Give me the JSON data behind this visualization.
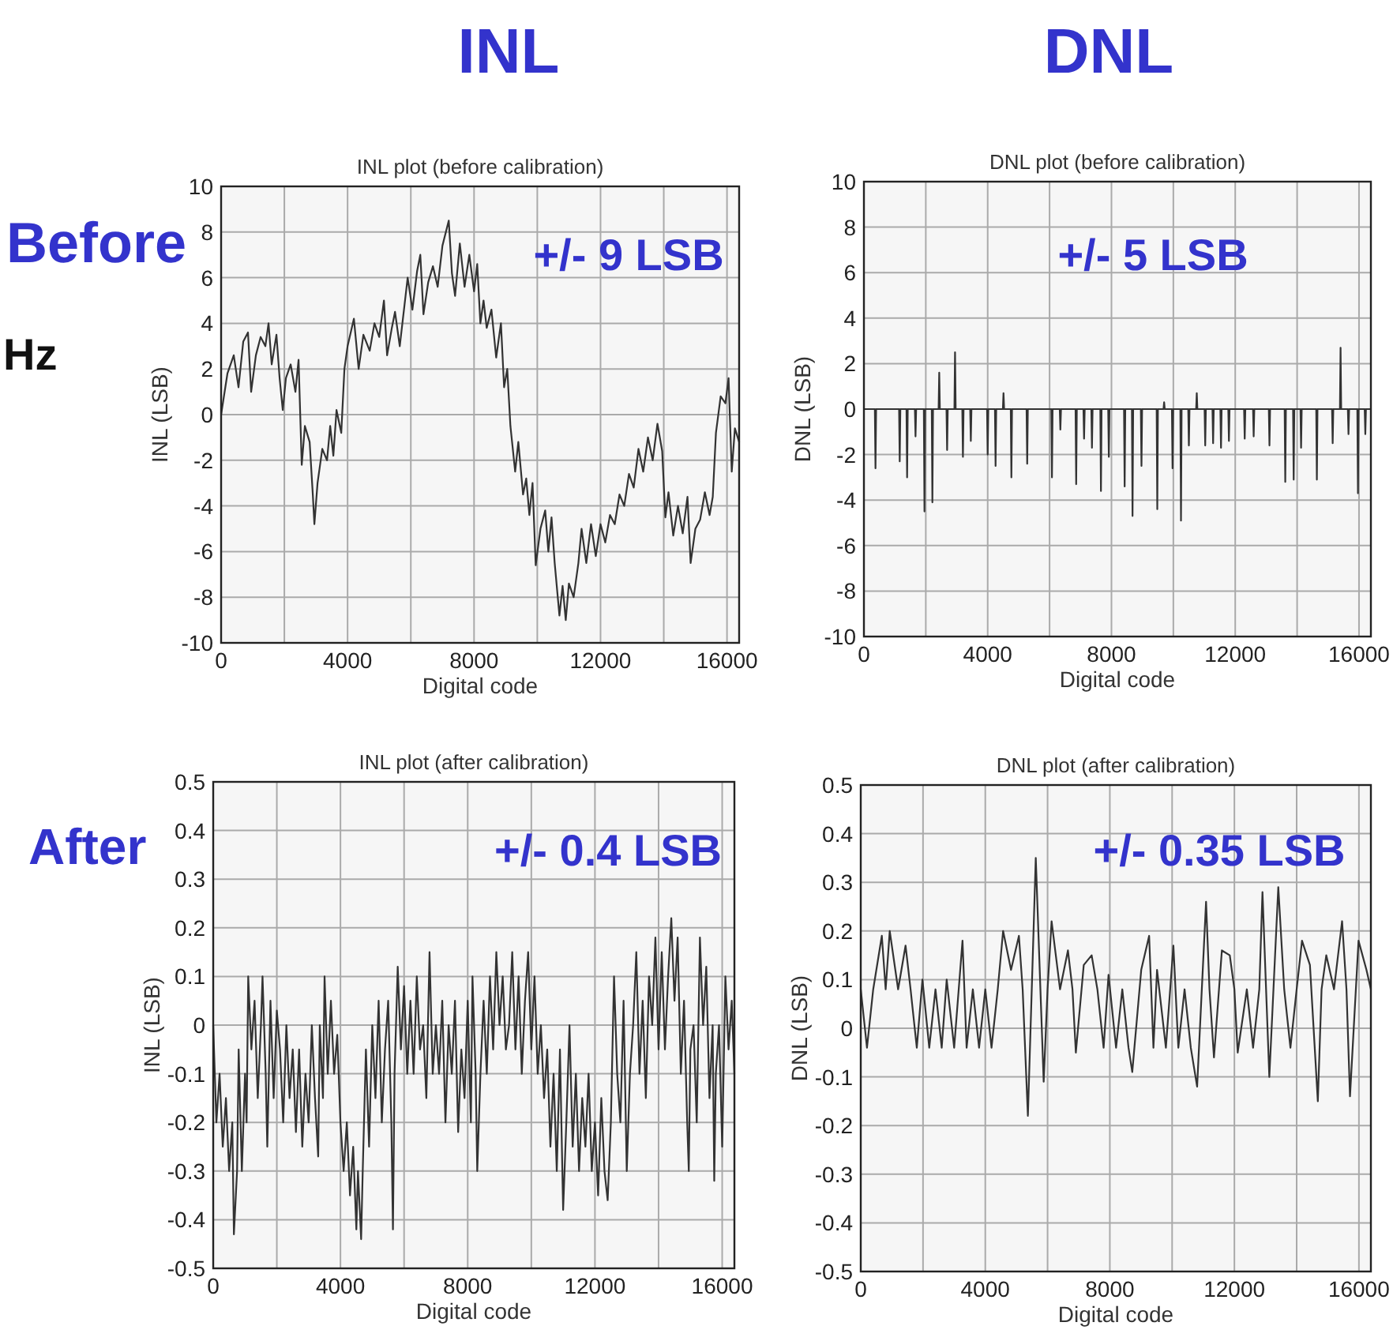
{
  "chart_data": [
    {
      "type": "line",
      "title": "INL plot (before calibration)",
      "xlabel": "Digital code",
      "ylabel": "INL (LSB)",
      "xlim": [
        0,
        16384
      ],
      "ylim": [
        -10,
        10
      ],
      "xticks": [
        0,
        {
          "value": 2000,
          "label": null
        },
        4000,
        {
          "value": 6000,
          "label": null
        },
        8000,
        {
          "value": 10000,
          "label": null
        },
        12000,
        {
          "value": 14000,
          "label": null
        },
        16000
      ],
      "yticks": [
        -10,
        -8,
        -6,
        -4,
        -2,
        0,
        2,
        4,
        6,
        8,
        10
      ],
      "grid": true,
      "annotations": [
        "INL",
        "Before",
        "Hz",
        "+/- 9 LSB"
      ],
      "series": [
        {
          "color": "#333333",
          "x": [
            0,
            200,
            400,
            550,
            700,
            850,
            950,
            1100,
            1250,
            1400,
            1500,
            1600,
            1750,
            1850,
            1950,
            2050,
            2200,
            2350,
            2450,
            2550,
            2650,
            2800,
            2900,
            2950,
            3050,
            3200,
            3350,
            3450,
            3550,
            3650,
            3800,
            3900,
            4000,
            4200,
            4350,
            4500,
            4700,
            4850,
            5000,
            5150,
            5250,
            5400,
            5500,
            5650,
            5800,
            5900,
            6050,
            6200,
            6300,
            6400,
            6550,
            6700,
            6850,
            7000,
            7200,
            7300,
            7400,
            7550,
            7700,
            7850,
            8000,
            8100,
            8200,
            8300,
            8400,
            8550,
            8700,
            8850,
            8950,
            9050,
            9150,
            9300,
            9400,
            9550,
            9650,
            9750,
            9850,
            9950,
            10100,
            10250,
            10350,
            10450,
            10550,
            10700,
            10800,
            10900,
            11000,
            11150,
            11300,
            11400,
            11550,
            11700,
            11850,
            12000,
            12150,
            12300,
            12450,
            12600,
            12750,
            12900,
            13050,
            13200,
            13350,
            13500,
            13650,
            13800,
            13950,
            14050,
            14150,
            14300,
            14450,
            14600,
            14750,
            14850,
            15000,
            15150,
            15300,
            15450,
            15550,
            15650,
            15800,
            15950,
            16050,
            16150,
            16250,
            16384
          ],
          "values": [
            0,
            1.8,
            2.6,
            1.2,
            3.2,
            3.6,
            1.0,
            2.6,
            3.4,
            3.0,
            4.0,
            2.2,
            3.5,
            1.6,
            0.2,
            1.6,
            2.2,
            1.0,
            2.4,
            -2.2,
            -0.5,
            -1.2,
            -3.5,
            -4.8,
            -3.0,
            -1.5,
            -2.0,
            -0.5,
            -1.8,
            0.2,
            -0.8,
            2.0,
            3.0,
            4.2,
            2.0,
            3.5,
            2.8,
            4.0,
            3.4,
            5.0,
            2.6,
            3.8,
            4.5,
            3.0,
            4.8,
            6.0,
            4.6,
            6.3,
            7.0,
            4.4,
            5.8,
            6.5,
            5.6,
            7.4,
            8.5,
            6.2,
            5.2,
            7.5,
            5.6,
            7.0,
            5.4,
            6.6,
            4.0,
            5.0,
            3.8,
            4.6,
            2.5,
            4.0,
            1.2,
            2.0,
            -0.5,
            -2.5,
            -1.2,
            -3.5,
            -2.8,
            -4.4,
            -3.0,
            -6.6,
            -5.0,
            -4.2,
            -6.0,
            -4.5,
            -6.5,
            -8.8,
            -7.5,
            -9.0,
            -7.4,
            -8.0,
            -6.5,
            -5.0,
            -6.5,
            -4.8,
            -6.2,
            -4.8,
            -5.6,
            -4.4,
            -4.8,
            -3.5,
            -4.0,
            -2.6,
            -3.2,
            -1.5,
            -2.5,
            -1.0,
            -2.0,
            -0.4,
            -1.6,
            -4.5,
            -3.4,
            -5.3,
            -4.0,
            -5.2,
            -3.6,
            -6.5,
            -5.0,
            -4.6,
            -3.4,
            -4.4,
            -3.6,
            -0.8,
            0.8,
            0.5,
            1.6,
            -2.5,
            -0.6,
            -1.2
          ]
        }
      ]
    },
    {
      "type": "line",
      "title": "DNL plot (before calibration)",
      "xlabel": "Digital code",
      "ylabel": "DNL (LSB)",
      "xlim": [
        0,
        16384
      ],
      "ylim": [
        -10,
        10
      ],
      "xticks": [
        0,
        {
          "value": 2000,
          "label": null
        },
        4000,
        {
          "value": 6000,
          "label": null
        },
        8000,
        {
          "value": 10000,
          "label": null
        },
        12000,
        {
          "value": 14000,
          "label": null
        },
        16000
      ],
      "yticks": [
        -10,
        -8,
        -6,
        -4,
        -2,
        0,
        2,
        4,
        6,
        8,
        10
      ],
      "grid": true,
      "annotations": [
        "DNL",
        "+/- 5 LSB"
      ],
      "series": [
        {
          "color": "#333333",
          "x": [
            0,
            354,
            374,
            394,
            1137,
            1157,
            1177,
            1376,
            1396,
            1416,
            1648,
            1668,
            1688,
            1937,
            1957,
            1977,
            2193,
            2213,
            2233,
            2414,
            2434,
            2454,
            2669,
            2689,
            2709,
            2925,
            2945,
            2965,
            3180,
            3200,
            3220,
            3435,
            3455,
            3475,
            3980,
            4000,
            4020,
            4235,
            4255,
            4275,
            4491,
            4511,
            4531,
            4746,
            4766,
            4786,
            5257,
            5277,
            5297,
            6057,
            6077,
            6097,
            6329,
            6349,
            6369,
            6840,
            6860,
            6880,
            7095,
            7115,
            7135,
            7350,
            7370,
            7390,
            7640,
            7660,
            7680,
            7895,
            7915,
            7935,
            8406,
            8426,
            8446,
            8661,
            8681,
            8701,
            8950,
            8970,
            8990,
            9461,
            9481,
            9501,
            9682,
            9702,
            9722,
            9954,
            9974,
            9994,
            10227,
            10247,
            10267,
            10482,
            10502,
            10522,
            10737,
            10757,
            10777,
            11010,
            11030,
            11050,
            11265,
            11285,
            11305,
            11520,
            11540,
            11560,
            11776,
            11796,
            11816,
            12286,
            12306,
            12326,
            12576,
            12596,
            12616,
            13086,
            13106,
            13126,
            13597,
            13617,
            13637,
            13869,
            13889,
            13909,
            14108,
            14128,
            14148,
            14618,
            14638,
            14658,
            15129,
            15149,
            15169,
            15384,
            15404,
            15424,
            15640,
            15660,
            15680,
            15946,
            15966,
            15986,
            16184,
            16204,
            16224,
            16384
          ],
          "values": [
            0,
            0,
            -2.6,
            0,
            0,
            -2.3,
            0,
            0,
            -3.0,
            0,
            0,
            -1.2,
            0,
            0,
            -4.5,
            0,
            0,
            -4.1,
            0,
            0,
            1.6,
            0,
            0,
            -1.8,
            0,
            0,
            2.5,
            0,
            0,
            -2.1,
            0,
            0,
            -1.4,
            0,
            0,
            -2.0,
            0,
            0,
            -2.5,
            0,
            0,
            0.7,
            0,
            0,
            -3.0,
            0,
            0,
            -2.4,
            0,
            0,
            -3.0,
            0,
            0,
            -0.9,
            0,
            0,
            -3.3,
            0,
            0,
            -1.3,
            0,
            0,
            -1.7,
            0,
            0,
            -3.6,
            0,
            0,
            -2.1,
            0,
            0,
            -3.4,
            0,
            0,
            -4.7,
            0,
            0,
            -2.5,
            0,
            0,
            -4.4,
            0,
            0,
            0.3,
            0,
            0,
            -2.6,
            0,
            0,
            -4.9,
            0,
            0,
            -1.6,
            0,
            0,
            0.7,
            0,
            0,
            -1.6,
            0,
            0,
            -1.5,
            0,
            0,
            -1.7,
            0,
            0,
            -1.4,
            0,
            0,
            -1.3,
            0,
            0,
            -1.2,
            0,
            0,
            -1.6,
            0,
            0,
            -3.2,
            0,
            0,
            -3.1,
            0,
            0,
            -1.7,
            0,
            0,
            -3.1,
            0,
            0,
            -1.5,
            0,
            0,
            2.7,
            0,
            0,
            -1.1,
            0,
            0,
            -3.7,
            0,
            0,
            -1.1,
            0,
            0
          ]
        }
      ]
    },
    {
      "type": "line",
      "title": "INL plot (after calibration)",
      "xlabel": "Digital code",
      "ylabel": "INL (LSB)",
      "xlim": [
        0,
        16384
      ],
      "ylim": [
        -0.5,
        0.5
      ],
      "xticks": [
        0,
        {
          "value": 2000,
          "label": null
        },
        4000,
        {
          "value": 6000,
          "label": null
        },
        8000,
        {
          "value": 10000,
          "label": null
        },
        12000,
        {
          "value": 14000,
          "label": null
        },
        16000
      ],
      "yticks": [
        -0.5,
        -0.4,
        -0.3,
        -0.2,
        -0.1,
        0,
        0.1,
        0.2,
        0.3,
        0.4,
        0.5
      ],
      "grid": true,
      "annotations": [
        "After",
        "+/- 0.4 LSB"
      ],
      "series": [
        {
          "color": "#333333",
          "x": [
            0,
            100,
            200,
            300,
            400,
            500,
            600,
            650,
            750,
            800,
            900,
            1000,
            1050,
            1100,
            1200,
            1300,
            1400,
            1500,
            1550,
            1650,
            1700,
            1800,
            1900,
            2000,
            2100,
            2200,
            2300,
            2400,
            2500,
            2600,
            2700,
            2800,
            2900,
            3000,
            3100,
            3200,
            3300,
            3350,
            3450,
            3500,
            3600,
            3700,
            3800,
            3900,
            4000,
            4100,
            4200,
            4300,
            4400,
            4500,
            4550,
            4650,
            4700,
            4800,
            4900,
            5000,
            5100,
            5200,
            5300,
            5400,
            5500,
            5600,
            5650,
            5700,
            5800,
            5900,
            6000,
            6100,
            6200,
            6300,
            6400,
            6500,
            6600,
            6700,
            6800,
            6900,
            7000,
            7100,
            7200,
            7300,
            7400,
            7500,
            7600,
            7700,
            7800,
            7900,
            8000,
            8100,
            8150,
            8250,
            8300,
            8400,
            8500,
            8600,
            8700,
            8800,
            8900,
            9000,
            9100,
            9200,
            9300,
            9400,
            9500,
            9600,
            9700,
            9800,
            9900,
            10000,
            10100,
            10200,
            10300,
            10400,
            10500,
            10600,
            10700,
            10800,
            10900,
            11000,
            11100,
            11200,
            11300,
            11400,
            11500,
            11600,
            11700,
            11800,
            11900,
            12000,
            12100,
            12200,
            12300,
            12400,
            12500,
            12600,
            12700,
            12800,
            12900,
            13000,
            13100,
            13200,
            13300,
            13400,
            13500,
            13600,
            13700,
            13800,
            13900,
            14000,
            14100,
            14200,
            14300,
            14400,
            14500,
            14600,
            14700,
            14800,
            14900,
            14950,
            15000,
            15100,
            15200,
            15300,
            15400,
            15500,
            15600,
            15700,
            15750,
            15800,
            15900,
            16000,
            16100,
            16200,
            16300,
            16384
          ],
          "values": [
            0,
            -0.2,
            -0.1,
            -0.25,
            -0.15,
            -0.3,
            -0.2,
            -0.43,
            -0.3,
            -0.05,
            -0.3,
            -0.1,
            -0.2,
            0.1,
            -0.05,
            0.05,
            -0.15,
            0,
            0.1,
            -0.1,
            -0.25,
            0.05,
            -0.15,
            0.03,
            -0.05,
            -0.2,
            0,
            -0.15,
            -0.05,
            -0.22,
            -0.05,
            -0.25,
            -0.1,
            -0.2,
            0,
            -0.15,
            -0.27,
            0,
            -0.15,
            0.1,
            -0.1,
            0.05,
            -0.1,
            -0.02,
            -0.2,
            -0.3,
            -0.2,
            -0.35,
            -0.25,
            -0.42,
            -0.3,
            -0.44,
            -0.3,
            -0.05,
            -0.25,
            0,
            -0.15,
            0.05,
            -0.2,
            -0.05,
            0.05,
            -0.2,
            -0.42,
            -0.1,
            0.12,
            -0.05,
            0.08,
            -0.1,
            0.05,
            -0.1,
            0.1,
            -0.05,
            0,
            -0.15,
            0.15,
            -0.1,
            0,
            -0.1,
            0.05,
            -0.2,
            0,
            -0.1,
            0.05,
            -0.22,
            -0.05,
            -0.15,
            0.05,
            -0.2,
            0.1,
            -0.1,
            -0.3,
            -0.1,
            0.05,
            -0.1,
            0.1,
            -0.05,
            0.15,
            0,
            0.1,
            -0.05,
            0,
            0.15,
            -0.05,
            0.1,
            -0.1,
            0.05,
            0.15,
            -0.05,
            0.1,
            -0.1,
            0,
            -0.15,
            -0.05,
            -0.25,
            -0.1,
            -0.3,
            -0.05,
            -0.38,
            -0.2,
            0,
            -0.25,
            -0.1,
            -0.3,
            -0.15,
            -0.25,
            -0.1,
            -0.3,
            -0.2,
            -0.35,
            -0.15,
            -0.3,
            -0.36,
            -0.2,
            0.1,
            -0.1,
            -0.2,
            0.05,
            -0.3,
            -0.1,
            0,
            0.15,
            -0.1,
            0.05,
            -0.15,
            0.1,
            0,
            0.18,
            -0.05,
            0.15,
            -0.05,
            0.1,
            0.22,
            0.05,
            0.18,
            -0.1,
            0.05,
            -0.2,
            -0.3,
            -0.05,
            0,
            -0.2,
            0.18,
            0,
            0.12,
            -0.15,
            0,
            -0.32,
            -0.1,
            0,
            -0.25,
            0.1,
            -0.05,
            0.05,
            -0.1
          ]
        }
      ]
    },
    {
      "type": "line",
      "title": "DNL plot (after calibration)",
      "xlabel": "Digital code",
      "ylabel": "DNL (LSB)",
      "xlim": [
        0,
        16384
      ],
      "ylim": [
        -0.5,
        0.5
      ],
      "xticks": [
        0,
        {
          "value": 2000,
          "label": null
        },
        4000,
        {
          "value": 6000,
          "label": null
        },
        8000,
        {
          "value": 10000,
          "label": null
        },
        12000,
        {
          "value": 14000,
          "label": null
        },
        16000
      ],
      "yticks": [
        -0.5,
        -0.4,
        -0.3,
        -0.2,
        -0.1,
        0,
        0.1,
        0.2,
        0.3,
        0.4,
        0.5
      ],
      "grid": true,
      "annotations": [
        "+/- 0.35 LSB"
      ],
      "series": [
        {
          "color": "#333333",
          "x": [
            0,
            200,
            400,
            677,
            800,
            931,
            1200,
            1439,
            1600,
            1800,
            1981,
            2200,
            2400,
            2600,
            2760,
            3000,
            3268,
            3400,
            3600,
            3800,
            4000,
            4200,
            4400,
            4572,
            4826,
            5080,
            5200,
            5368,
            5621,
            5875,
            6000,
            6129,
            6400,
            6654,
            6800,
            6908,
            7162,
            7416,
            7600,
            7800,
            7958,
            8200,
            8400,
            8600,
            8720,
            9008,
            9262,
            9400,
            9516,
            9800,
            10041,
            10200,
            10400,
            10600,
            10803,
            11090,
            11200,
            11344,
            11598,
            11852,
            12000,
            12106,
            12400,
            12600,
            12800,
            12902,
            13122,
            13410,
            13600,
            13800,
            14000,
            14172,
            14426,
            14680,
            14800,
            14951,
            15200,
            15459,
            15600,
            15713,
            15987,
            16241,
            16384
          ],
          "values": [
            0.08,
            -0.04,
            0.08,
            0.19,
            0.08,
            0.2,
            0.08,
            0.17,
            0.08,
            -0.04,
            0.1,
            -0.04,
            0.08,
            -0.04,
            0.1,
            -0.04,
            0.18,
            -0.04,
            0.08,
            -0.04,
            0.08,
            -0.04,
            0.08,
            0.2,
            0.12,
            0.19,
            0.08,
            -0.18,
            0.35,
            -0.11,
            0.08,
            0.22,
            0.08,
            0.16,
            0.08,
            -0.05,
            0.13,
            0.15,
            0.08,
            -0.04,
            0.11,
            -0.04,
            0.08,
            -0.04,
            -0.09,
            0.12,
            0.19,
            -0.04,
            0.12,
            -0.04,
            0.17,
            -0.04,
            0.08,
            -0.04,
            -0.12,
            0.26,
            0.08,
            -0.06,
            0.16,
            0.15,
            0.08,
            -0.05,
            0.08,
            -0.04,
            0.08,
            0.28,
            -0.1,
            0.29,
            0.08,
            -0.04,
            0.08,
            0.18,
            0.13,
            -0.15,
            0.08,
            0.15,
            0.08,
            0.22,
            0.08,
            -0.14,
            0.18,
            0.12,
            0.08
          ]
        }
      ]
    }
  ]
}
